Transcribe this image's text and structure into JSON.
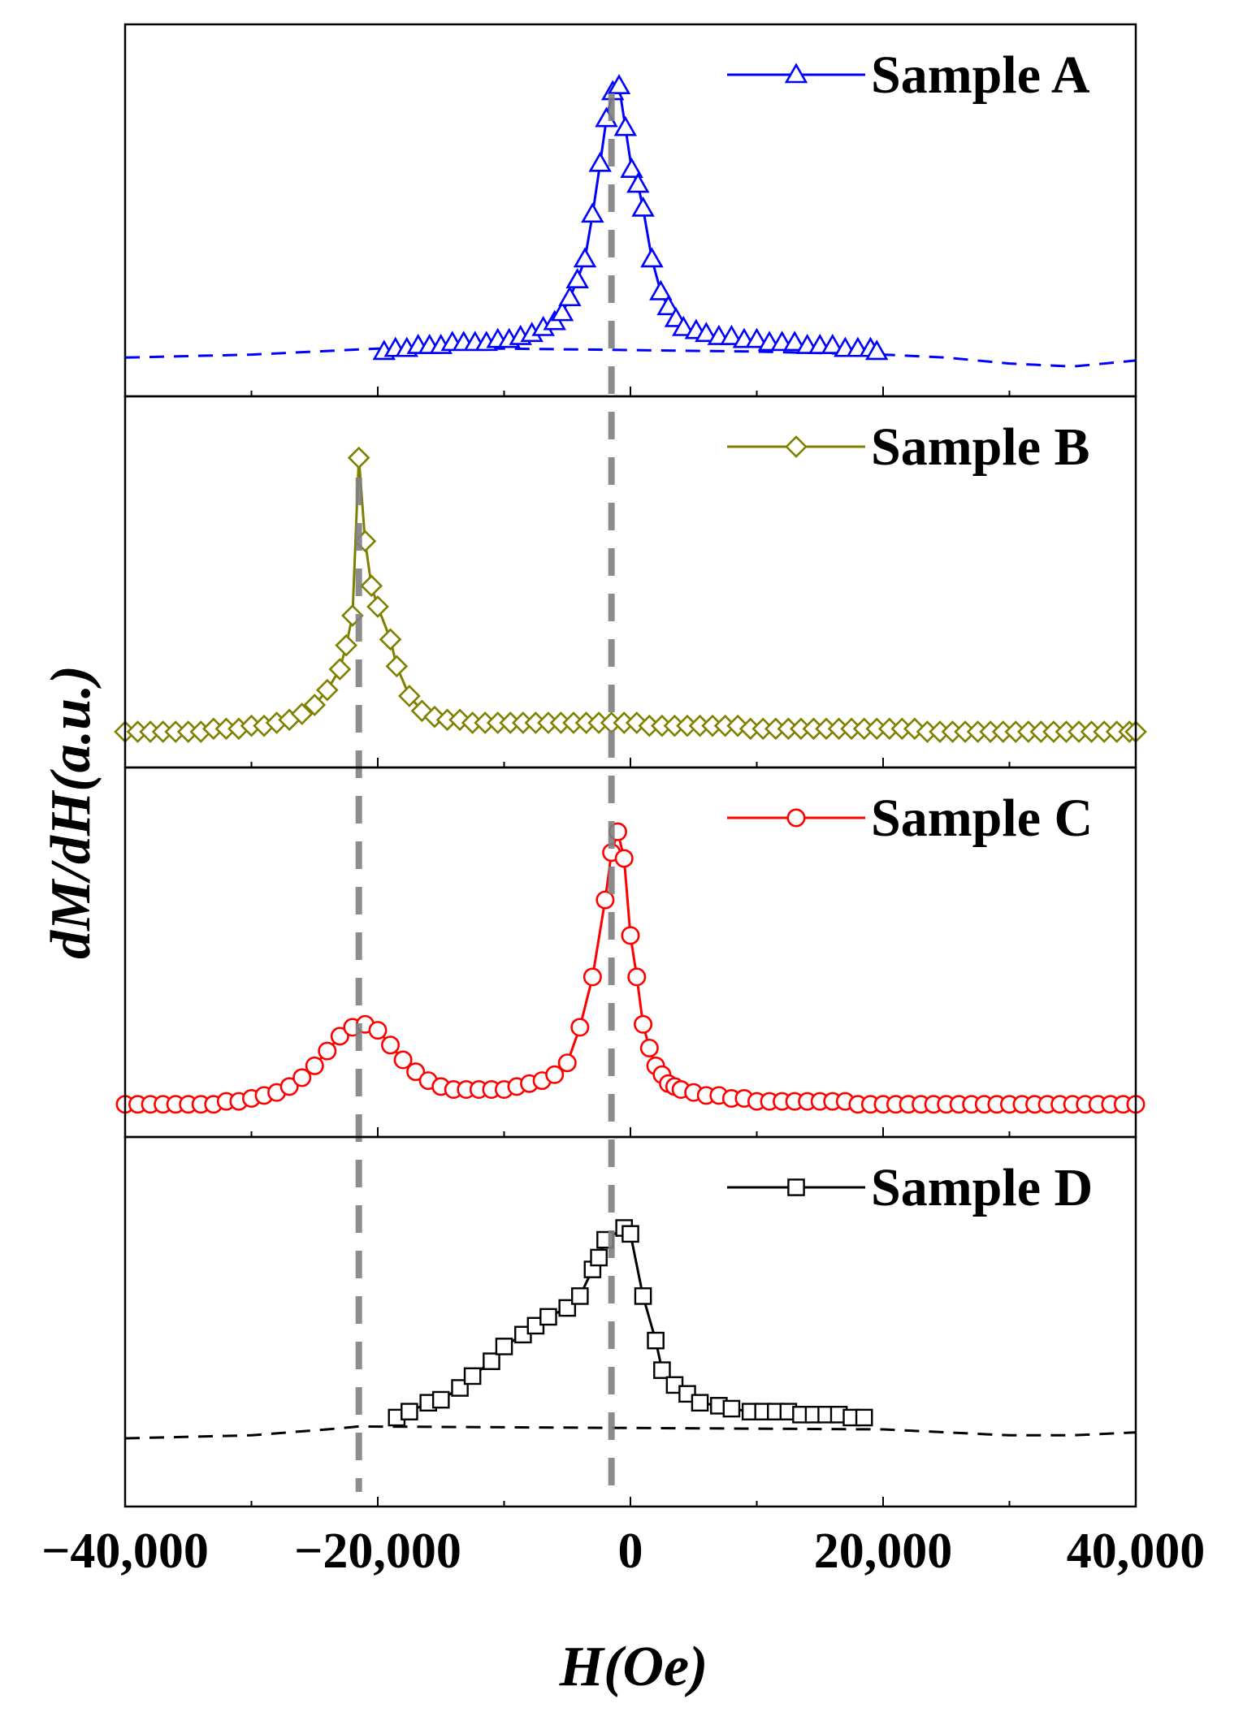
{
  "chart_data": {
    "type": "line",
    "layout": "stacked-panels",
    "xlabel": "H(Oe)",
    "ylabel": "dM/dH(a.u.)",
    "xlim": [
      -40000,
      40000
    ],
    "x_ticks": [
      -40000,
      -20000,
      0,
      20000,
      40000
    ],
    "x_tick_labels": [
      "−40,000",
      "−20,000",
      "0",
      "20,000",
      "40,000"
    ],
    "y_ticks_shown": false,
    "reference_lines": [
      {
        "x": -21500,
        "style": "dashed",
        "color": "#808080",
        "panels": [
          "Sample B",
          "Sample C",
          "Sample D"
        ]
      },
      {
        "x": -1500,
        "style": "dashed",
        "color": "#808080",
        "panels": [
          "Sample A",
          "Sample B",
          "Sample C",
          "Sample D"
        ]
      }
    ],
    "series": [
      {
        "name": "Sample A",
        "color": "#0000ff",
        "marker": "triangle",
        "ylim": [
          0,
          1.05
        ],
        "peak_x": -1000,
        "baseline_fit_dashed": [
          [
            -40000,
            0.07
          ],
          [
            -30000,
            0.08
          ],
          [
            -20000,
            0.1
          ],
          [
            -10000,
            0.1
          ],
          [
            10000,
            0.09
          ],
          [
            20000,
            0.08
          ],
          [
            25000,
            0.07
          ],
          [
            30000,
            0.05
          ],
          [
            35000,
            0.04
          ],
          [
            40000,
            0.06
          ]
        ],
        "x": [
          -19500,
          -18600,
          -17700,
          -16800,
          -15900,
          -15000,
          -14100,
          -13200,
          -12300,
          -11400,
          -10500,
          -9600,
          -8700,
          -7800,
          -6900,
          -6000,
          -5400,
          -4800,
          -4200,
          -3600,
          -3000,
          -2400,
          -1900,
          -1400,
          -900,
          -400,
          100,
          600,
          1000,
          1700,
          2400,
          3000,
          3600,
          4200,
          5200,
          6000,
          7000,
          8000,
          9000,
          10000,
          11000,
          12000,
          13000,
          14000,
          15000,
          16000,
          17000,
          18000,
          19000,
          19500
        ],
        "y": [
          0.09,
          0.1,
          0.1,
          0.11,
          0.11,
          0.11,
          0.12,
          0.12,
          0.12,
          0.12,
          0.13,
          0.13,
          0.14,
          0.15,
          0.17,
          0.19,
          0.22,
          0.27,
          0.33,
          0.4,
          0.55,
          0.72,
          0.87,
          0.96,
          0.98,
          0.84,
          0.7,
          0.65,
          0.57,
          0.4,
          0.29,
          0.24,
          0.2,
          0.17,
          0.16,
          0.15,
          0.14,
          0.14,
          0.13,
          0.13,
          0.12,
          0.12,
          0.12,
          0.11,
          0.11,
          0.11,
          0.1,
          0.1,
          0.1,
          0.09
        ]
      },
      {
        "name": "Sample B",
        "color": "#808000",
        "marker": "diamond",
        "ylim": [
          0,
          1.05
        ],
        "peak_x": -21500,
        "x": [
          -40000,
          -39000,
          -38000,
          -37000,
          -36000,
          -35000,
          -34000,
          -33000,
          -32000,
          -31000,
          -30000,
          -29000,
          -28000,
          -27000,
          -26000,
          -25000,
          -24000,
          -23000,
          -22500,
          -22000,
          -21500,
          -21000,
          -20500,
          -20000,
          -19000,
          -18500,
          -17500,
          -16500,
          -15500,
          -14500,
          -13500,
          -12500,
          -11500,
          -10500,
          -9500,
          -8500,
          -7500,
          -6500,
          -5500,
          -4500,
          -3500,
          -2500,
          -1500,
          -500,
          500,
          1500,
          2500,
          3500,
          4500,
          5500,
          6500,
          7500,
          8500,
          9500,
          10500,
          11500,
          12500,
          13500,
          14500,
          15500,
          16500,
          17500,
          18500,
          19500,
          20500,
          21500,
          22500,
          23500,
          24500,
          25500,
          26500,
          27500,
          28500,
          29500,
          30500,
          31500,
          32500,
          33500,
          34500,
          35500,
          36500,
          37500,
          38500,
          39500,
          40000
        ],
        "y": [
          0.06,
          0.06,
          0.06,
          0.06,
          0.06,
          0.06,
          0.06,
          0.07,
          0.07,
          0.07,
          0.08,
          0.08,
          0.09,
          0.1,
          0.12,
          0.15,
          0.2,
          0.27,
          0.35,
          0.45,
          0.98,
          0.7,
          0.55,
          0.48,
          0.37,
          0.28,
          0.18,
          0.13,
          0.11,
          0.1,
          0.1,
          0.09,
          0.09,
          0.09,
          0.09,
          0.09,
          0.09,
          0.09,
          0.09,
          0.09,
          0.09,
          0.09,
          0.09,
          0.09,
          0.09,
          0.08,
          0.08,
          0.08,
          0.08,
          0.08,
          0.08,
          0.08,
          0.08,
          0.07,
          0.07,
          0.07,
          0.07,
          0.07,
          0.07,
          0.07,
          0.07,
          0.07,
          0.07,
          0.07,
          0.07,
          0.07,
          0.07,
          0.06,
          0.06,
          0.06,
          0.06,
          0.06,
          0.06,
          0.06,
          0.06,
          0.06,
          0.06,
          0.06,
          0.06,
          0.06,
          0.06,
          0.06,
          0.06,
          0.06,
          0.06
        ]
      },
      {
        "name": "Sample C",
        "color": "#ff0000",
        "marker": "circle",
        "ylim": [
          0,
          1.05
        ],
        "peak_x": -1000,
        "x": [
          -40000,
          -39000,
          -38000,
          -37000,
          -36000,
          -35000,
          -34000,
          -33000,
          -32000,
          -31000,
          -30000,
          -29000,
          -28000,
          -27000,
          -26000,
          -25000,
          -24000,
          -23000,
          -22000,
          -21000,
          -20000,
          -19000,
          -18000,
          -17000,
          -16000,
          -15000,
          -14000,
          -13000,
          -12000,
          -11000,
          -10000,
          -9000,
          -8000,
          -7000,
          -6000,
          -5000,
          -4000,
          -3000,
          -2000,
          -1500,
          -1000,
          -500,
          0,
          500,
          1000,
          1500,
          2000,
          2500,
          3000,
          3500,
          4000,
          5000,
          6000,
          7000,
          8000,
          9000,
          10000,
          11000,
          12000,
          13000,
          14000,
          15000,
          16000,
          17000,
          18000,
          19000,
          20000,
          21000,
          22000,
          23000,
          24000,
          25000,
          26000,
          27000,
          28000,
          29000,
          30000,
          31000,
          32000,
          33000,
          34000,
          35000,
          36000,
          37000,
          38000,
          39000,
          40000
        ],
        "y": [
          0.05,
          0.05,
          0.05,
          0.05,
          0.05,
          0.05,
          0.05,
          0.05,
          0.06,
          0.06,
          0.07,
          0.08,
          0.09,
          0.11,
          0.14,
          0.18,
          0.23,
          0.28,
          0.31,
          0.32,
          0.3,
          0.25,
          0.2,
          0.16,
          0.13,
          0.11,
          0.1,
          0.1,
          0.1,
          0.1,
          0.1,
          0.11,
          0.12,
          0.13,
          0.15,
          0.19,
          0.31,
          0.48,
          0.74,
          0.9,
          0.97,
          0.88,
          0.62,
          0.48,
          0.32,
          0.24,
          0.18,
          0.15,
          0.12,
          0.11,
          0.1,
          0.09,
          0.08,
          0.08,
          0.07,
          0.07,
          0.06,
          0.06,
          0.06,
          0.06,
          0.06,
          0.06,
          0.06,
          0.06,
          0.05,
          0.05,
          0.05,
          0.05,
          0.05,
          0.05,
          0.05,
          0.05,
          0.05,
          0.05,
          0.05,
          0.05,
          0.05,
          0.05,
          0.05,
          0.05,
          0.05,
          0.05,
          0.05,
          0.05,
          0.05,
          0.05,
          0.05
        ]
      },
      {
        "name": "Sample D",
        "color": "#000000",
        "marker": "square",
        "ylim": [
          0,
          1.05
        ],
        "peak_x": -1000,
        "baseline_fit_dashed": [
          [
            -40000,
            0.17
          ],
          [
            -30000,
            0.18
          ],
          [
            -24000,
            0.2
          ],
          [
            -21500,
            0.21
          ],
          [
            20000,
            0.2
          ],
          [
            25000,
            0.19
          ],
          [
            30000,
            0.18
          ],
          [
            35000,
            0.18
          ],
          [
            40000,
            0.19
          ]
        ],
        "x": [
          -18500,
          -17500,
          -16000,
          -15000,
          -13500,
          -12500,
          -11000,
          -10000,
          -8500,
          -7500,
          -6500,
          -5000,
          -4000,
          -3000,
          -2500,
          -2000,
          -500,
          0,
          1000,
          2000,
          2500,
          3500,
          4500,
          5500,
          7000,
          8000,
          9500,
          10500,
          11500,
          12500,
          13500,
          14500,
          15500,
          16500,
          17500,
          18500
        ],
        "y": [
          0.24,
          0.26,
          0.29,
          0.3,
          0.34,
          0.38,
          0.43,
          0.48,
          0.52,
          0.55,
          0.58,
          0.61,
          0.65,
          0.74,
          0.78,
          0.84,
          0.88,
          0.86,
          0.65,
          0.5,
          0.4,
          0.35,
          0.32,
          0.29,
          0.28,
          0.27,
          0.26,
          0.26,
          0.26,
          0.26,
          0.25,
          0.25,
          0.25,
          0.25,
          0.24,
          0.24
        ]
      }
    ]
  }
}
